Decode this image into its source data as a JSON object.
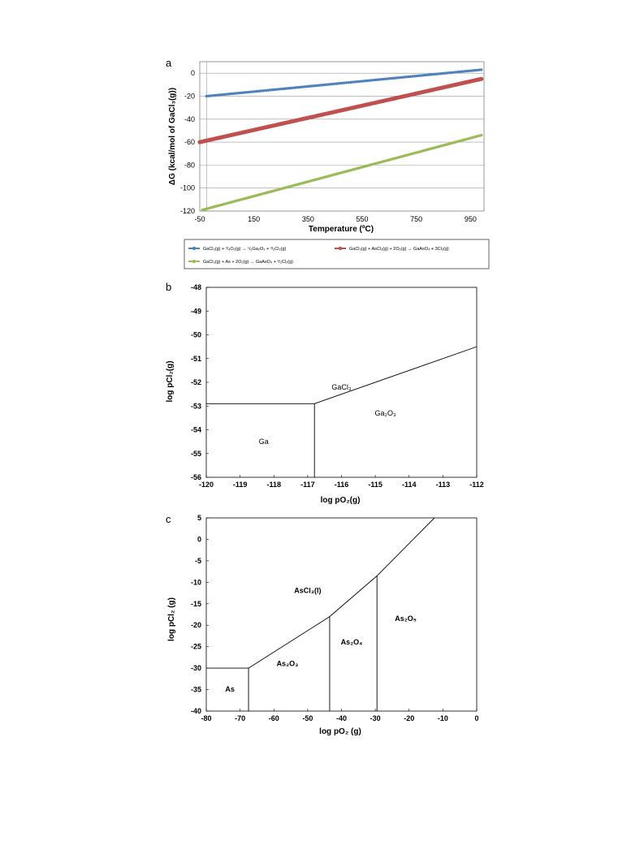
{
  "chart_data": [
    {
      "type": "line",
      "panel_label": "a",
      "xlabel": "Temperature (ºC)",
      "ylabel": "ΔG (kcal/mol of GaCl₃(g))",
      "xlim": [
        -50,
        1000
      ],
      "ylim": [
        -120,
        10
      ],
      "xticks": [
        "-50",
        "150",
        "350",
        "550",
        "750",
        "950"
      ],
      "xtick_values": [
        -50,
        150,
        350,
        550,
        750,
        950
      ],
      "yticks": [
        "0",
        "-20",
        "-40",
        "-60",
        "-80",
        "-100",
        "-120"
      ],
      "ytick_values": [
        0,
        -20,
        -40,
        -60,
        -80,
        -100,
        -120
      ],
      "grid": "horizontal",
      "legend_position": "bottom",
      "series": [
        {
          "name": "GaCl₃(g) + ³/₄O₂(g) → ¹/₂Ga₂O₃ + ³/₂Cl₂(g)",
          "color": "#4f81bd",
          "x": [
            -25,
            990
          ],
          "y": [
            -20,
            3
          ]
        },
        {
          "name": "GaCl₃(g) + AsCl₃(g) + 2O₂(g) → GaAsO₄ + 3Cl₂(g)",
          "color": "#c0504d",
          "x": [
            -50,
            990
          ],
          "y": [
            -60,
            -5
          ]
        },
        {
          "name": "GaCl₃(g) + As + 2O₂(g) → GaAsO₄ + ³/₂Cl₂(g)",
          "color": "#9bbb59",
          "x": [
            -40,
            990
          ],
          "y": [
            -119,
            -54
          ]
        }
      ]
    },
    {
      "type": "line",
      "panel_label": "b",
      "xlabel": "log pO₂(g)",
      "ylabel": "log pCl₂(g)",
      "xlim": [
        -120,
        -112
      ],
      "ylim": [
        -56,
        -48
      ],
      "xticks": [
        "-120",
        "-119",
        "-118",
        "-117",
        "-116",
        "-115",
        "-114",
        "-113",
        "-112"
      ],
      "xtick_values": [
        -120,
        -119,
        -118,
        -117,
        -116,
        -115,
        -114,
        -113,
        -112
      ],
      "yticks": [
        "-48",
        "-49",
        "-50",
        "-51",
        "-52",
        "-53",
        "-54",
        "-55",
        "-56"
      ],
      "ytick_values": [
        -48,
        -49,
        -50,
        -51,
        -52,
        -53,
        -54,
        -55,
        -56
      ],
      "boundaries": [
        {
          "x": [
            -120,
            -116.8
          ],
          "y": [
            -52.9,
            -52.9
          ]
        },
        {
          "x": [
            -116.8,
            -116.8
          ],
          "y": [
            -52.9,
            -56
          ]
        },
        {
          "x": [
            -116.8,
            -112
          ],
          "y": [
            -52.9,
            -50.5
          ]
        }
      ],
      "regions": [
        {
          "label": "GaCl₃",
          "x": -116,
          "y": -52.3
        },
        {
          "label": "Ga₂O₃",
          "x": -114.7,
          "y": -53.4
        },
        {
          "label": "Ga",
          "x": -118.3,
          "y": -54.6
        }
      ]
    },
    {
      "type": "line",
      "panel_label": "c",
      "xlabel": "log pO₂ (g)",
      "ylabel": "log pCl₂ (g)",
      "xlim": [
        -80,
        0
      ],
      "ylim": [
        -40,
        5
      ],
      "xticks": [
        "-80",
        "-70",
        "-60",
        "-50",
        "-40",
        "-30",
        "-20",
        "-10",
        "0"
      ],
      "xtick_values": [
        -80,
        -70,
        -60,
        -50,
        -40,
        -30,
        -20,
        -10,
        0
      ],
      "yticks": [
        "5",
        "0",
        "-5",
        "-10",
        "-15",
        "-20",
        "-25",
        "-30",
        "-35",
        "-40"
      ],
      "ytick_values": [
        5,
        0,
        -5,
        -10,
        -15,
        -20,
        -25,
        -30,
        -35,
        -40
      ],
      "boundaries": [
        {
          "x": [
            -80,
            -67.5
          ],
          "y": [
            -30,
            -30
          ]
        },
        {
          "x": [
            -67.5,
            -67.5
          ],
          "y": [
            -30,
            -40
          ]
        },
        {
          "x": [
            -67.5,
            -43.5
          ],
          "y": [
            -30,
            -18
          ]
        },
        {
          "x": [
            -43.5,
            -43.5
          ],
          "y": [
            -18,
            -40
          ]
        },
        {
          "x": [
            -43.5,
            -29.5
          ],
          "y": [
            -18,
            -8.5
          ]
        },
        {
          "x": [
            -29.5,
            -29.5
          ],
          "y": [
            -8.5,
            -40
          ]
        },
        {
          "x": [
            -29.5,
            -12.5
          ],
          "y": [
            -8.5,
            5
          ]
        }
      ],
      "regions": [
        {
          "label": "AsCl₃(l)",
          "x": -50,
          "y": -12.5
        },
        {
          "label": "As₂O₅",
          "x": -21,
          "y": -19
        },
        {
          "label": "As₂O₄",
          "x": -37,
          "y": -24.5
        },
        {
          "label": "As₂O₃",
          "x": -56,
          "y": -29.5
        },
        {
          "label": "As",
          "x": -73,
          "y": -35.5
        }
      ]
    }
  ]
}
